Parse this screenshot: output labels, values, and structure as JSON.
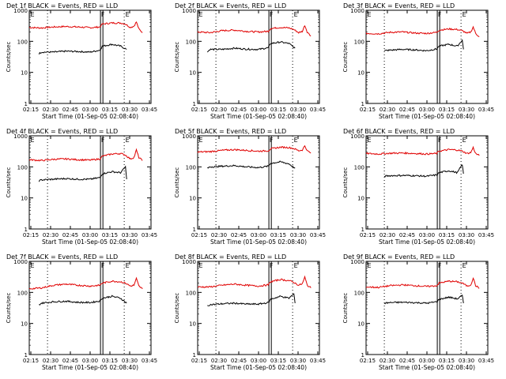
{
  "figure": {
    "colors": {
      "events": "#000000",
      "lld": "#e00000",
      "axes": "#000000",
      "background": "#ffffff"
    }
  },
  "chart_data": [
    {
      "type": "line",
      "title": "Det 1f BLACK = Events, RED = LLD",
      "xlabel": "Start Time (01-Sep-05 02:08:40)",
      "ylabel": "Counts/sec",
      "yscale": "log",
      "ylim": [
        1,
        1000
      ],
      "xlim": [
        0,
        100
      ],
      "x_ticks": [
        "02:15",
        "02:30",
        "02:45",
        "03:00",
        "03:15",
        "03:30",
        "03:45"
      ],
      "y_ticks": [
        "1",
        "10",
        "100",
        "1000"
      ],
      "markers": [
        "E",
        "F",
        "E"
      ],
      "series": [
        {
          "name": "LLD",
          "color": "#e00000",
          "x": [
            0,
            10,
            20,
            30,
            40,
            50,
            58,
            60,
            68,
            75,
            79,
            83,
            86,
            88,
            90,
            93
          ],
          "y": [
            280,
            270,
            290,
            300,
            290,
            275,
            290,
            360,
            390,
            390,
            360,
            280,
            310,
            420,
            250,
            190
          ]
        },
        {
          "name": "Events",
          "color": "#000000",
          "x": [
            8,
            10,
            20,
            30,
            40,
            50,
            58,
            60,
            68,
            75,
            80
          ],
          "y": [
            40,
            45,
            45,
            48,
            47,
            45,
            52,
            70,
            80,
            70,
            55
          ]
        }
      ]
    },
    {
      "type": "line",
      "title": "Det 2f BLACK = Events, RED = LLD",
      "xlabel": "Start Time (01-Sep-05 02:08:40)",
      "ylabel": "Counts/sec",
      "yscale": "log",
      "ylim": [
        1,
        1000
      ],
      "xlim": [
        0,
        100
      ],
      "x_ticks": [
        "02:15",
        "02:30",
        "02:45",
        "03:00",
        "03:15",
        "03:30",
        "03:45"
      ],
      "y_ticks": [
        "1",
        "10",
        "100",
        "1000"
      ],
      "markers": [
        "E",
        "F",
        "E"
      ],
      "series": [
        {
          "name": "LLD",
          "color": "#e00000",
          "x": [
            0,
            10,
            20,
            30,
            40,
            50,
            58,
            60,
            68,
            75,
            79,
            83,
            86,
            88,
            90,
            93
          ],
          "y": [
            200,
            190,
            220,
            230,
            210,
            200,
            210,
            260,
            280,
            270,
            240,
            190,
            210,
            330,
            200,
            150
          ]
        },
        {
          "name": "Events",
          "color": "#000000",
          "x": [
            8,
            10,
            20,
            30,
            40,
            50,
            58,
            60,
            68,
            75,
            80
          ],
          "y": [
            45,
            55,
            55,
            60,
            56,
            55,
            62,
            85,
            95,
            85,
            60
          ]
        }
      ]
    },
    {
      "type": "line",
      "title": "Det 3f BLACK = Events, RED = LLD",
      "xlabel": "Start Time (01-Sep-05 02:08:40)",
      "ylabel": "Counts/sec",
      "yscale": "log",
      "ylim": [
        1,
        1000
      ],
      "xlim": [
        0,
        100
      ],
      "x_ticks": [
        "02:15",
        "02:30",
        "02:45",
        "03:00",
        "03:15",
        "03:30",
        "03:45"
      ],
      "y_ticks": [
        "1",
        "10",
        "100",
        "1000"
      ],
      "markers": [
        "E",
        "F",
        "E"
      ],
      "series": [
        {
          "name": "LLD",
          "color": "#e00000",
          "x": [
            0,
            10,
            20,
            30,
            40,
            50,
            58,
            60,
            68,
            75,
            79,
            83,
            86,
            88,
            90,
            93
          ],
          "y": [
            180,
            175,
            195,
            200,
            185,
            180,
            195,
            230,
            250,
            240,
            220,
            180,
            200,
            290,
            180,
            140
          ]
        },
        {
          "name": "Events",
          "color": "#000000",
          "x": [
            15,
            20,
            30,
            40,
            50,
            58,
            60,
            68,
            75,
            79,
            80
          ],
          "y": [
            50,
            52,
            55,
            53,
            50,
            57,
            70,
            80,
            70,
            110,
            55
          ]
        }
      ]
    },
    {
      "type": "line",
      "title": "Det 4f BLACK = Events, RED = LLD",
      "xlabel": "Start Time (01-Sep-05 02:08:40)",
      "ylabel": "Counts/sec",
      "yscale": "log",
      "ylim": [
        1,
        1000
      ],
      "xlim": [
        0,
        100
      ],
      "x_ticks": [
        "02:15",
        "02:30",
        "02:45",
        "03:00",
        "03:15",
        "03:30",
        "03:45"
      ],
      "y_ticks": [
        "1",
        "10",
        "100",
        "1000"
      ],
      "markers": [
        "E",
        "F",
        "E"
      ],
      "series": [
        {
          "name": "LLD",
          "color": "#e00000",
          "x": [
            0,
            10,
            20,
            30,
            40,
            50,
            58,
            60,
            68,
            75,
            79,
            83,
            86,
            88,
            90,
            93
          ],
          "y": [
            170,
            160,
            175,
            180,
            170,
            165,
            180,
            220,
            260,
            270,
            240,
            180,
            200,
            350,
            200,
            160
          ]
        },
        {
          "name": "Events",
          "color": "#000000",
          "x": [
            8,
            10,
            20,
            30,
            40,
            50,
            58,
            60,
            68,
            75,
            79,
            80
          ],
          "y": [
            35,
            38,
            40,
            42,
            40,
            40,
            45,
            60,
            70,
            65,
            100,
            40
          ]
        }
      ]
    },
    {
      "type": "line",
      "title": "Det 5f BLACK = Events, RED = LLD",
      "xlabel": "Start Time (01-Sep-05 02:08:40)",
      "ylabel": "Counts/sec",
      "yscale": "log",
      "ylim": [
        1,
        1000
      ],
      "xlim": [
        0,
        100
      ],
      "x_ticks": [
        "02:15",
        "02:30",
        "02:45",
        "03:00",
        "03:15",
        "03:30",
        "03:45"
      ],
      "y_ticks": [
        "1",
        "10",
        "100",
        "1000"
      ],
      "markers": [
        "E",
        "F",
        "E"
      ],
      "series": [
        {
          "name": "LLD",
          "color": "#e00000",
          "x": [
            0,
            10,
            20,
            30,
            40,
            50,
            58,
            60,
            68,
            75,
            79,
            83,
            86,
            88,
            90,
            93
          ],
          "y": [
            300,
            310,
            340,
            360,
            340,
            320,
            330,
            380,
            430,
            420,
            390,
            330,
            350,
            480,
            330,
            280
          ]
        },
        {
          "name": "Events",
          "color": "#000000",
          "x": [
            8,
            10,
            20,
            30,
            40,
            50,
            58,
            60,
            68,
            75,
            80
          ],
          "y": [
            90,
            100,
            105,
            110,
            100,
            95,
            105,
            130,
            145,
            125,
            90
          ]
        }
      ]
    },
    {
      "type": "line",
      "title": "Det 6f BLACK = Events, RED = LLD",
      "xlabel": "Start Time (01-Sep-05 02:08:40)",
      "ylabel": "Counts/sec",
      "yscale": "log",
      "ylim": [
        1,
        1000
      ],
      "xlim": [
        0,
        100
      ],
      "x_ticks": [
        "02:15",
        "02:30",
        "02:45",
        "03:00",
        "03:15",
        "03:30",
        "03:45"
      ],
      "y_ticks": [
        "1",
        "10",
        "100",
        "1000"
      ],
      "markers": [
        "E",
        "F",
        "E"
      ],
      "series": [
        {
          "name": "LLD",
          "color": "#e00000",
          "x": [
            0,
            10,
            20,
            30,
            40,
            50,
            58,
            60,
            68,
            75,
            79,
            83,
            86,
            88,
            90,
            93
          ],
          "y": [
            270,
            260,
            275,
            280,
            270,
            260,
            270,
            320,
            360,
            350,
            320,
            270,
            290,
            420,
            270,
            230
          ]
        },
        {
          "name": "Events",
          "color": "#000000",
          "x": [
            15,
            20,
            30,
            40,
            50,
            58,
            60,
            68,
            75,
            79,
            80
          ],
          "y": [
            50,
            52,
            53,
            52,
            50,
            55,
            65,
            75,
            65,
            120,
            60
          ]
        }
      ]
    },
    {
      "type": "line",
      "title": "Det 7f BLACK = Events, RED = LLD",
      "xlabel": "Start Time (01-Sep-05 02:08:40)",
      "ylabel": "Counts/sec",
      "yscale": "log",
      "ylim": [
        1,
        1000
      ],
      "xlim": [
        0,
        100
      ],
      "x_ticks": [
        "02:15",
        "02:30",
        "02:45",
        "03:00",
        "03:15",
        "03:30",
        "03:45"
      ],
      "y_ticks": [
        "1",
        "10",
        "100",
        "1000"
      ],
      "markers": [
        "E",
        "F",
        "E"
      ],
      "series": [
        {
          "name": "LLD",
          "color": "#e00000",
          "x": [
            0,
            10,
            20,
            30,
            40,
            50,
            58,
            60,
            68,
            75,
            79,
            83,
            86,
            88,
            90,
            93
          ],
          "y": [
            130,
            140,
            170,
            185,
            170,
            160,
            170,
            200,
            230,
            220,
            200,
            160,
            170,
            280,
            160,
            130
          ]
        },
        {
          "name": "Events",
          "color": "#000000",
          "x": [
            8,
            10,
            20,
            30,
            40,
            50,
            58,
            60,
            68,
            75,
            80
          ],
          "y": [
            40,
            45,
            50,
            52,
            48,
            47,
            53,
            65,
            75,
            65,
            45
          ]
        }
      ]
    },
    {
      "type": "line",
      "title": "Det 8f BLACK = Events, RED = LLD",
      "xlabel": "Start Time (01-Sep-05 02:08:40)",
      "ylabel": "Counts/sec",
      "yscale": "log",
      "ylim": [
        1,
        1000
      ],
      "xlim": [
        0,
        100
      ],
      "x_ticks": [
        "02:15",
        "02:30",
        "02:45",
        "03:00",
        "03:15",
        "03:30",
        "03:45"
      ],
      "y_ticks": [
        "1",
        "10",
        "100",
        "1000"
      ],
      "markers": [
        "E",
        "F",
        "E"
      ],
      "series": [
        {
          "name": "LLD",
          "color": "#e00000",
          "x": [
            0,
            10,
            20,
            30,
            40,
            50,
            58,
            60,
            68,
            75,
            79,
            83,
            86,
            88,
            90,
            93
          ],
          "y": [
            150,
            150,
            170,
            185,
            170,
            160,
            175,
            220,
            260,
            240,
            210,
            170,
            190,
            310,
            170,
            140
          ]
        },
        {
          "name": "Events",
          "color": "#000000",
          "x": [
            8,
            10,
            20,
            30,
            40,
            50,
            58,
            60,
            68,
            75,
            79,
            80
          ],
          "y": [
            38,
            40,
            43,
            45,
            42,
            42,
            47,
            60,
            75,
            65,
            90,
            45
          ]
        }
      ]
    },
    {
      "type": "line",
      "title": "Det 9f BLACK = Events, RED = LLD",
      "xlabel": "Start Time (01-Sep-05 02:08:40)",
      "ylabel": "Counts/sec",
      "yscale": "log",
      "ylim": [
        1,
        1000
      ],
      "xlim": [
        0,
        100
      ],
      "x_ticks": [
        "02:15",
        "02:30",
        "02:45",
        "03:00",
        "03:15",
        "03:30",
        "03:45"
      ],
      "y_ticks": [
        "1",
        "10",
        "100",
        "1000"
      ],
      "markers": [
        "E",
        "F",
        "E"
      ],
      "series": [
        {
          "name": "LLD",
          "color": "#e00000",
          "x": [
            0,
            10,
            20,
            30,
            40,
            50,
            58,
            60,
            68,
            75,
            79,
            83,
            86,
            88,
            90,
            93
          ],
          "y": [
            150,
            145,
            165,
            175,
            165,
            155,
            165,
            200,
            230,
            220,
            200,
            160,
            175,
            290,
            165,
            135
          ]
        },
        {
          "name": "Events",
          "color": "#000000",
          "x": [
            15,
            20,
            30,
            40,
            50,
            58,
            60,
            68,
            75,
            79,
            80
          ],
          "y": [
            45,
            47,
            48,
            47,
            45,
            50,
            60,
            70,
            62,
            80,
            45
          ]
        }
      ]
    }
  ]
}
